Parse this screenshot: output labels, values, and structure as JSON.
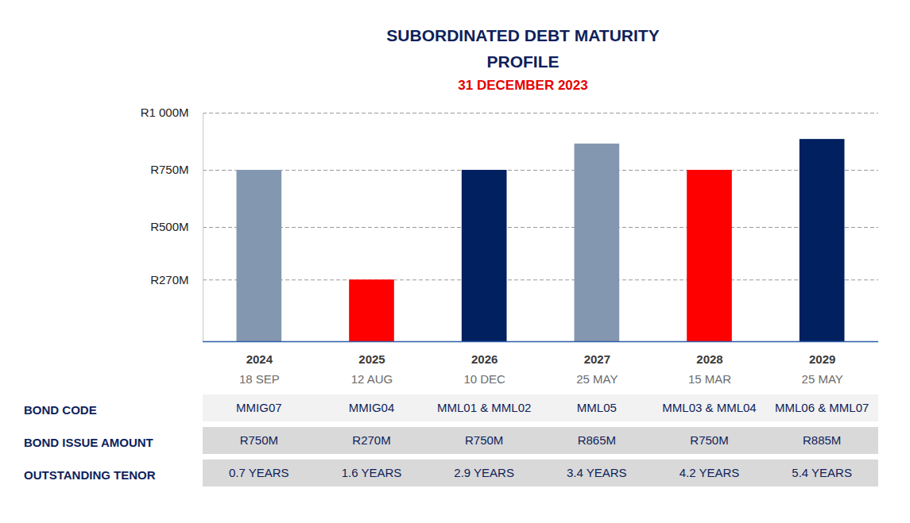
{
  "chart_data": {
    "type": "bar",
    "title": "SUBORDINATED DEBT MATURITY PROFILE",
    "subtitle": "31 DECEMBER 2023",
    "categories": [
      "2024",
      "2025",
      "2026",
      "2027",
      "2028",
      "2029"
    ],
    "dates": [
      "18 SEP",
      "12 AUG",
      "10 DEC",
      "25 MAY",
      "15 MAR",
      "25 MAY"
    ],
    "values": [
      750,
      270,
      750,
      865,
      750,
      885
    ],
    "colors": [
      "#8497b0",
      "#ff0000",
      "#002060",
      "#8497b0",
      "#ff0000",
      "#002060"
    ],
    "ylim": [
      0,
      1000
    ],
    "yticks": [
      {
        "value": 270,
        "label": "R270M"
      },
      {
        "value": 500,
        "label": "R500M"
      },
      {
        "value": 750,
        "label": "R750M"
      },
      {
        "value": 1000,
        "label": "R1 000M"
      }
    ],
    "grid": true,
    "table": {
      "rows": [
        {
          "label": "BOND CODE",
          "cells": [
            "MMIG07",
            "MMIG04",
            "MML01 & MML02",
            "MML05",
            "MML03 & MML04",
            "MML06 & MML07"
          ]
        },
        {
          "label": "BOND ISSUE AMOUNT",
          "cells": [
            "R750M",
            "R270M",
            "R750M",
            "R865M",
            "R750M",
            "R885M"
          ]
        },
        {
          "label": "OUTSTANDING TENOR",
          "cells": [
            "0.7 YEARS",
            "1.6 YEARS",
            "2.9 YEARS",
            "3.4 YEARS",
            "4.2 YEARS",
            "5.4 YEARS"
          ]
        }
      ]
    }
  }
}
